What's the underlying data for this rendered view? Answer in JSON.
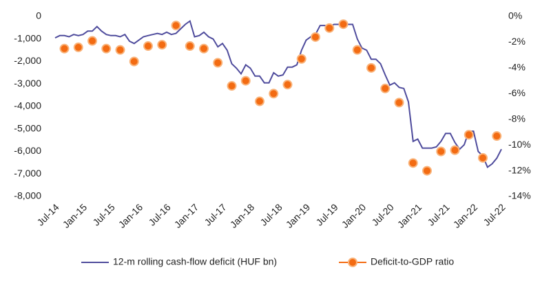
{
  "chart_data": {
    "type": "line",
    "categories": [
      "Jul-14",
      null,
      null,
      null,
      null,
      null,
      "Jan-15",
      null,
      null,
      null,
      null,
      null,
      "Jul-15",
      null,
      null,
      null,
      null,
      null,
      "Jan-16",
      null,
      null,
      null,
      null,
      null,
      "Jul-16",
      null,
      null,
      null,
      null,
      null,
      "Jan-17",
      null,
      null,
      null,
      null,
      null,
      "Jul-17",
      null,
      null,
      null,
      null,
      null,
      "Jan-18",
      null,
      null,
      null,
      null,
      null,
      "Jul-18",
      null,
      null,
      null,
      null,
      null,
      "Jan-19",
      null,
      null,
      null,
      null,
      null,
      "Jul-19",
      null,
      null,
      null,
      null,
      null,
      "Jan-20",
      null,
      null,
      null,
      null,
      null,
      "Jul-20",
      null,
      null,
      null,
      null,
      null,
      "Jan-21",
      null,
      null,
      null,
      null,
      null,
      "Jul-21",
      null,
      null,
      null,
      null,
      null,
      "Jan-22",
      null,
      null,
      null,
      null,
      null,
      "Jul-22"
    ],
    "series": [
      {
        "name": "12-m rolling cash-flow deficit (HUF bn)",
        "type": "line",
        "color": "#4e4b9c",
        "values": [
          -950,
          -850,
          -850,
          -900,
          -800,
          -850,
          -800,
          -650,
          -650,
          -450,
          -650,
          -800,
          -850,
          -850,
          -900,
          -800,
          -1100,
          -1200,
          -1050,
          -900,
          -850,
          -800,
          -750,
          -800,
          -700,
          -800,
          -750,
          -550,
          -350,
          -200,
          -900,
          -850,
          -700,
          -900,
          -1000,
          -1350,
          -1200,
          -1500,
          -2100,
          -2300,
          -2550,
          -2150,
          -2300,
          -2650,
          -2650,
          -2950,
          -2950,
          -2500,
          -2650,
          -2600,
          -2250,
          -2250,
          -2150,
          -1500,
          -1050,
          -900,
          -800,
          -400,
          -400,
          -450,
          -350,
          -350,
          -300,
          -350,
          -350,
          -1000,
          -1400,
          -1500,
          -1900,
          -1900,
          -2100,
          -2600,
          -3050,
          -2950,
          -3150,
          -3200,
          -3800,
          -5550,
          -5450,
          -5850,
          -5850,
          -5850,
          -5800,
          -5550,
          -5200,
          -5200,
          -5600,
          -5900,
          -5700,
          -5100,
          -5100,
          -6000,
          -6200,
          -6700,
          -6550,
          -6300,
          -5900
        ]
      },
      {
        "name": "Deficit-to-GDP ratio",
        "type": "scatter",
        "axis": "y2",
        "color": "#f36b12",
        "values": [
          null,
          null,
          -2.5,
          null,
          null,
          -2.4,
          null,
          null,
          -1.9,
          null,
          null,
          -2.5,
          null,
          null,
          -2.6,
          null,
          null,
          -3.5,
          null,
          null,
          -2.3,
          null,
          null,
          -2.2,
          null,
          null,
          -0.7,
          null,
          null,
          -2.3,
          null,
          null,
          -2.5,
          null,
          null,
          -3.6,
          null,
          null,
          -5.4,
          null,
          null,
          -5.0,
          null,
          null,
          -6.6,
          null,
          null,
          -6.0,
          null,
          null,
          -5.3,
          null,
          null,
          -3.3,
          null,
          null,
          -1.6,
          null,
          null,
          -0.9,
          null,
          null,
          -0.6,
          null,
          null,
          -2.6,
          null,
          null,
          -4.0,
          null,
          null,
          -5.6,
          null,
          null,
          -6.7,
          null,
          null,
          -11.4,
          null,
          null,
          -12.0,
          null,
          null,
          -10.5,
          null,
          null,
          -10.4,
          null,
          null,
          -9.2,
          null,
          null,
          -11.0,
          null,
          null,
          -9.3,
          null
        ]
      }
    ],
    "ylim": [
      -8000,
      0
    ],
    "yticks": [
      0,
      {
        "value": -1000,
        "label": "-1,000"
      },
      {
        "value": -2000,
        "label": "-2,000"
      },
      {
        "value": -3000,
        "label": "-3,000"
      },
      {
        "value": -4000,
        "label": "-4,000"
      },
      {
        "value": -5000,
        "label": "-5,000"
      },
      {
        "value": -6000,
        "label": "-6,000"
      },
      {
        "value": -7000,
        "label": "-7,000"
      },
      {
        "value": -8000,
        "label": "-8,000"
      }
    ],
    "y2lim": [
      -14,
      0
    ],
    "y2ticks": [
      {
        "value": 0,
        "label": "0%"
      },
      {
        "value": -2,
        "label": "-2%"
      },
      {
        "value": -4,
        "label": "-4%"
      },
      {
        "value": -6,
        "label": "-6%"
      },
      {
        "value": -8,
        "label": "-8%"
      },
      {
        "value": -10,
        "label": "-10%"
      },
      {
        "value": -12,
        "label": "-12%"
      },
      {
        "value": -14,
        "label": "-14%"
      }
    ],
    "legend": "bottom"
  }
}
